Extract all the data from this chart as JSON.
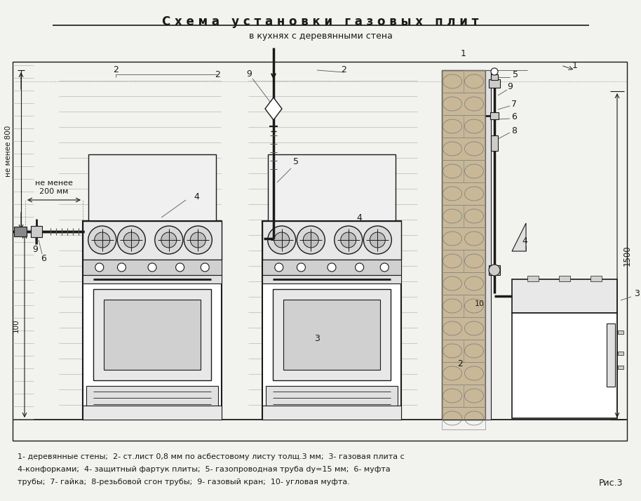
{
  "title_line1": "С х е м а   у с т а н о в к и   г а з о в ы х   п л и т",
  "title_line2": "в кухнях с деревянными стена",
  "caption_line1": "1- деревянные стены;  2- ст.лист 0,8 мм по асбестовому листу толщ.3 мм;  3- газовая плита с",
  "caption_line2": "4-конфорками;  4- защитный фартук плиты;  5- газопроводная труба dy=15 мм;  6- муфта",
  "caption_line3": "трубы;  7- гайка;  8-резьбовой сгон трубы;  9- газовый кран;  10- угловая муфта.",
  "fig_label": "Рис.3",
  "bg_color": "#f2f2ee",
  "line_color": "#1a1a1a",
  "shield_color": "#ddeef5",
  "wall_color": "#c8c0b0"
}
